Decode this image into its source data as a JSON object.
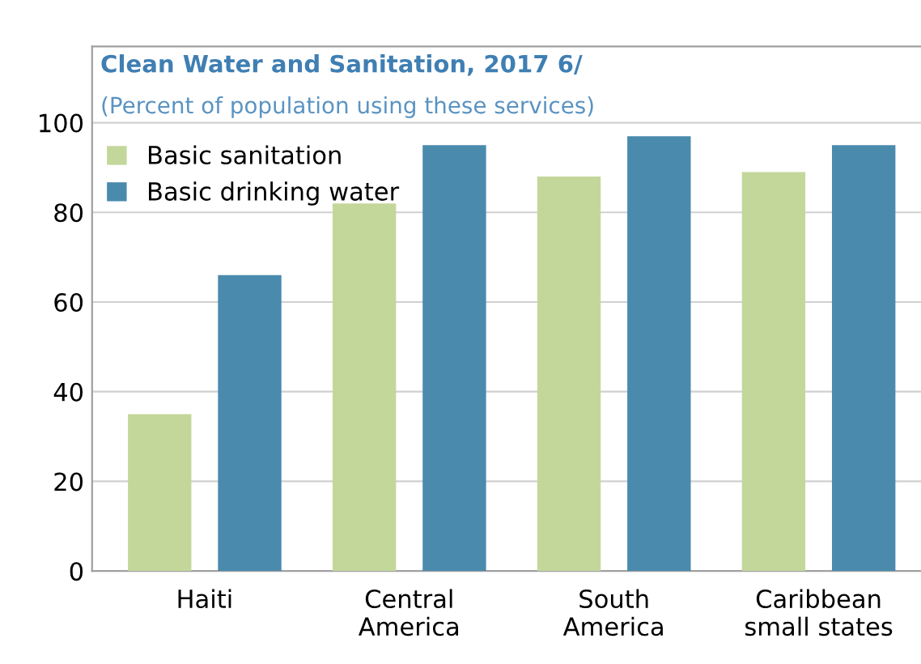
{
  "chart_data": {
    "type": "bar",
    "title": "Clean Water and Sanitation, 2017 6/",
    "subtitle": "(Percent of population using these services)",
    "categories": [
      "Haiti",
      "Central\nAmerica",
      "South\nAmerica",
      "Caribbean\nsmall states"
    ],
    "series": [
      {
        "name": "Basic sanitation",
        "color": "#c4d79b",
        "values": [
          35,
          82,
          88,
          89
        ]
      },
      {
        "name": "Basic drinking water",
        "color": "#4a8aad",
        "values": [
          66,
          95,
          97,
          95
        ]
      }
    ],
    "ylim": [
      0,
      117
    ],
    "yticks": [
      0,
      20,
      40,
      60,
      80,
      100
    ],
    "grid": "y",
    "legend": "top left"
  }
}
